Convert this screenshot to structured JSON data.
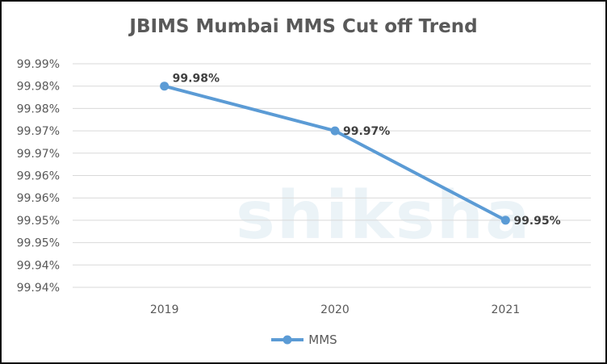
{
  "chart_data": {
    "type": "line",
    "title": "JBIMS Mumbai MMS Cut off Trend",
    "categories": [
      "2019",
      "2020",
      "2021"
    ],
    "series": [
      {
        "name": "MMS",
        "values": [
          99.985,
          99.975,
          99.955
        ],
        "data_labels": [
          "99.98%",
          "99.97%",
          "99.95%"
        ],
        "color": "#5b9bd5"
      }
    ],
    "ylim": [
      99.94,
      99.99
    ],
    "yticks": [
      "99.99%",
      "99.98%",
      "99.98%",
      "99.97%",
      "99.97%",
      "99.96%",
      "99.96%",
      "99.95%",
      "99.95%",
      "99.94%",
      "99.94%"
    ],
    "grid": true,
    "legend": "bottom",
    "watermark": "shiksha"
  }
}
